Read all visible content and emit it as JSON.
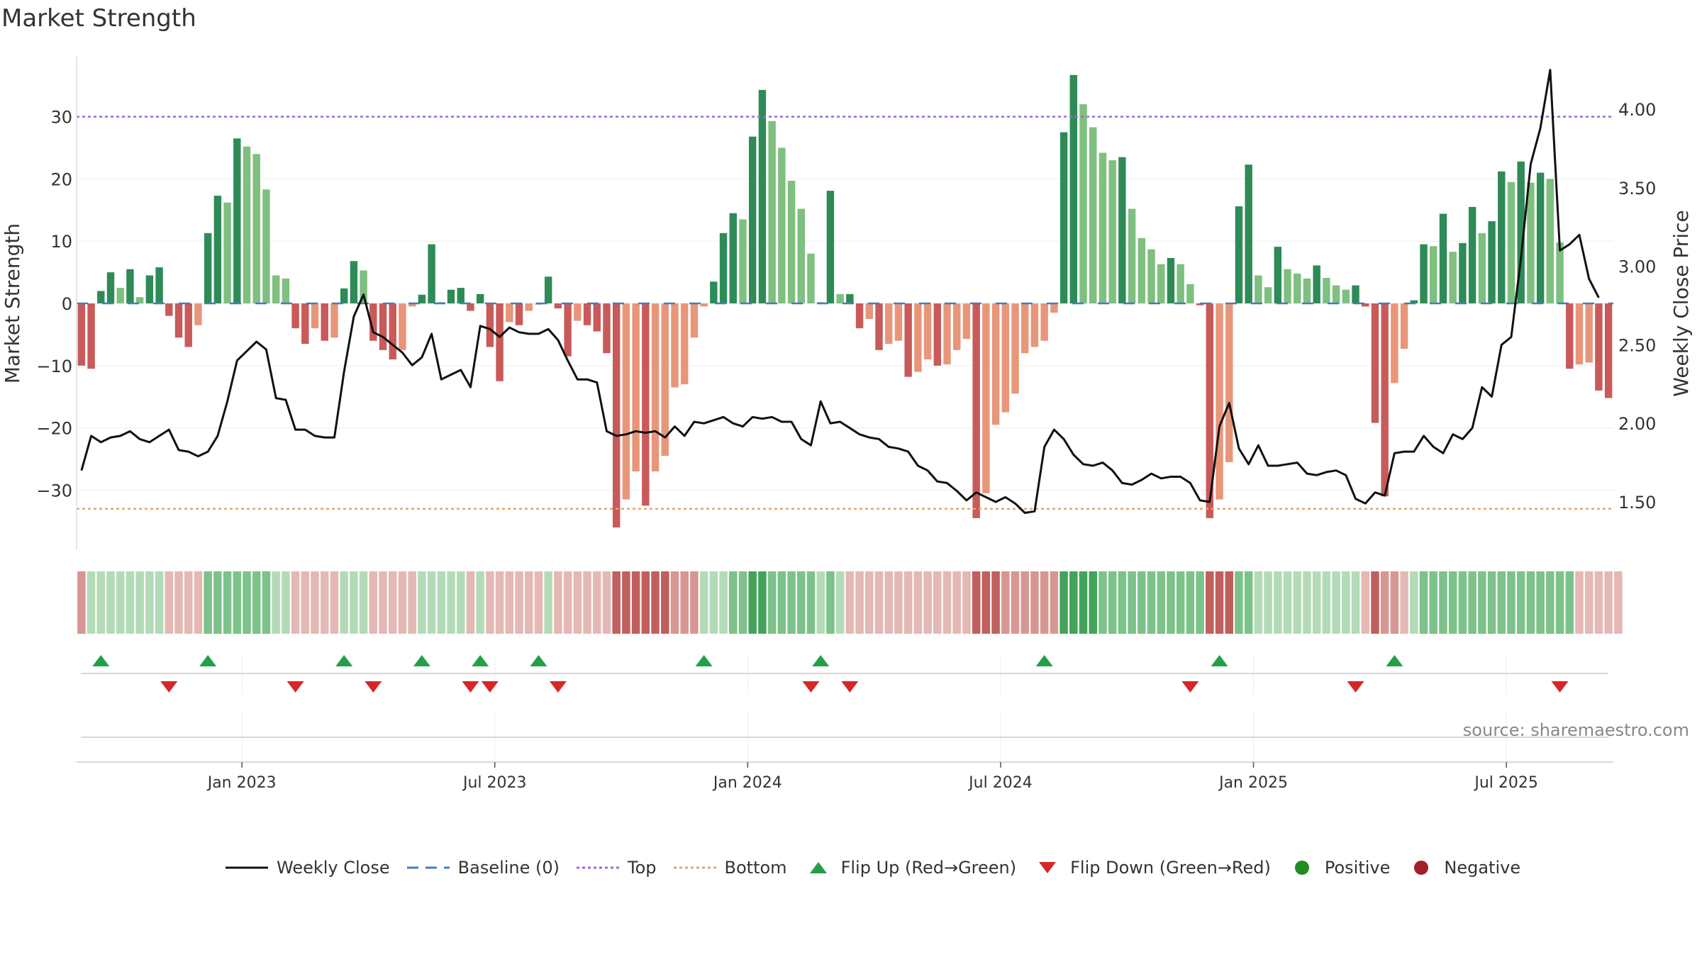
{
  "title": "Market Strength",
  "source": "source: sharemaestro.com",
  "colors": {
    "pos_dark": "#2e8b57",
    "pos_light": "#7fbf7f",
    "neg_dark": "#c85a5a",
    "neg_light": "#e8967a",
    "top_line": "#9c6ad9",
    "bottom_line": "#e8a46a",
    "baseline": "#3f7fbf",
    "close_line": "#111111",
    "flip_up": "#23a047",
    "flip_down": "#d62728",
    "positive_dot": "#228b22",
    "negative_dot": "#a0202a"
  },
  "chart_data": {
    "type": "bar",
    "x_ticks": [
      "Jan 2023",
      "Jul 2023",
      "Jan 2024",
      "Jul 2024",
      "Jan 2025",
      "Jul 2025"
    ],
    "x_tick_weeks": [
      17,
      43,
      69,
      95,
      121,
      147
    ],
    "ylabel": "Market Strength",
    "y2label": "Weekly Close Price",
    "yticks": [
      30,
      20,
      10,
      0,
      -10,
      -20,
      -30
    ],
    "ylim": [
      -39,
      40
    ],
    "y2ticks": [
      "4.00",
      "3.50",
      "3.00",
      "2.50",
      "2.00",
      "1.50"
    ],
    "y2lim": [
      1.3,
      4.42
    ],
    "top_level": 30,
    "bottom_level": -33,
    "strength": [
      -10,
      -10.5,
      2,
      5,
      2.5,
      5.5,
      1,
      4.5,
      5.8,
      -2,
      -5.5,
      -7,
      -3.5,
      11.3,
      17.3,
      16.2,
      26.5,
      25.2,
      24,
      18.3,
      4.5,
      4,
      -4,
      -6.5,
      -4,
      -6,
      -5.5,
      2.4,
      6.8,
      5.3,
      -6,
      -7.5,
      -9,
      -7.5,
      -0.5,
      1.4,
      9.5,
      0.2,
      2.2,
      2.5,
      -1.2,
      1.5,
      -7,
      -12.5,
      -3,
      -3.5,
      -1.2,
      -0.2,
      4.3,
      -0.8,
      -8.5,
      -2.8,
      -3.5,
      -4.5,
      -8,
      -36,
      -31.5,
      -27,
      -32.5,
      -27,
      -24.5,
      -13.5,
      -13,
      -5.5,
      -0.5,
      3.5,
      11.3,
      14.5,
      13.5,
      26.8,
      34.3,
      29.3,
      25,
      19.7,
      15.2,
      8,
      0.2,
      18.1,
      1.5,
      1.5,
      -4,
      -2.5,
      -7.5,
      -6.5,
      -6,
      -11.8,
      -11,
      -9,
      -10,
      -9.8,
      -7.5,
      -5.7,
      -34.5,
      -30.5,
      -19.5,
      -17.5,
      -14.5,
      -8,
      -7,
      -6,
      -1.5,
      27.5,
      36.7,
      32,
      28.3,
      24.2,
      23,
      23.5,
      15.2,
      10.5,
      8.7,
      6.3,
      7.3,
      6.3,
      3.1,
      -0.3,
      -34.5,
      -31.5,
      -25.5,
      15.6,
      22.3,
      4.5,
      2.6,
      9.1,
      5.5,
      4.8,
      4,
      6.1,
      4.1,
      2.9,
      2.2,
      2.9,
      -0.5,
      -19.2,
      -31,
      -12.8,
      -7.3,
      0.5,
      9.5,
      9.2,
      14.4,
      8.3,
      9.7,
      15.5,
      11.3,
      13.2,
      21.2,
      19.5,
      22.8,
      19.4,
      21,
      20,
      9.8,
      -10.5,
      -9.8,
      -9.5,
      -14,
      -15.2
    ],
    "close": [
      1.7,
      1.92,
      1.88,
      1.91,
      1.92,
      1.95,
      1.9,
      1.88,
      1.92,
      1.96,
      1.83,
      1.82,
      1.79,
      1.82,
      1.92,
      2.14,
      2.4,
      2.46,
      2.52,
      2.47,
      2.16,
      2.15,
      1.96,
      1.96,
      1.92,
      1.91,
      1.91,
      2.33,
      2.68,
      2.82,
      2.58,
      2.55,
      2.5,
      2.45,
      2.37,
      2.42,
      2.57,
      2.28,
      2.31,
      2.34,
      2.23,
      2.62,
      2.6,
      2.55,
      2.61,
      2.58,
      2.57,
      2.57,
      2.6,
      2.53,
      2.4,
      2.28,
      2.28,
      2.26,
      1.95,
      1.92,
      1.93,
      1.95,
      1.94,
      1.95,
      1.91,
      1.98,
      1.92,
      2.01,
      2.0,
      2.02,
      2.04,
      2.0,
      1.98,
      2.04,
      2.03,
      2.04,
      2.01,
      2.01,
      1.9,
      1.86,
      2.14,
      2.0,
      2.01,
      1.97,
      1.93,
      1.91,
      1.9,
      1.85,
      1.84,
      1.82,
      1.73,
      1.7,
      1.63,
      1.62,
      1.57,
      1.51,
      1.56,
      1.53,
      1.5,
      1.53,
      1.49,
      1.43,
      1.44,
      1.85,
      1.96,
      1.9,
      1.8,
      1.74,
      1.73,
      1.75,
      1.7,
      1.62,
      1.61,
      1.64,
      1.68,
      1.65,
      1.66,
      1.66,
      1.62,
      1.51,
      1.5,
      1.98,
      2.13,
      1.84,
      1.74,
      1.86,
      1.73,
      1.73,
      1.74,
      1.75,
      1.68,
      1.67,
      1.69,
      1.7,
      1.67,
      1.52,
      1.49,
      1.56,
      1.54,
      1.81,
      1.82,
      1.82,
      1.92,
      1.85,
      1.81,
      1.93,
      1.9,
      1.97,
      2.23,
      2.17,
      2.5,
      2.55,
      3.05,
      3.65,
      3.88,
      4.25,
      3.1,
      3.14,
      3.2,
      2.92,
      2.8
    ],
    "strength_band": [
      -2,
      1,
      1,
      1,
      1,
      1,
      1,
      1,
      1,
      -1,
      -1,
      -1,
      -1,
      2,
      2,
      2,
      2,
      2,
      2,
      2,
      1,
      1,
      -1,
      -1,
      -1,
      -1,
      -1,
      1,
      1,
      1,
      -1,
      -1,
      -1,
      -1,
      -1,
      1,
      1,
      1,
      1,
      1,
      -1,
      1,
      -1,
      -1,
      -1,
      -1,
      -1,
      -1,
      1,
      -1,
      -1,
      -1,
      -1,
      -1,
      -1,
      -3,
      -3,
      -3,
      -3,
      -3,
      -3,
      -2,
      -2,
      -2,
      1,
      1,
      1,
      2,
      2,
      3,
      3,
      2,
      2,
      2,
      2,
      2,
      1,
      2,
      1,
      -1,
      -1,
      -1,
      -1,
      -1,
      -1,
      -1,
      -1,
      -1,
      -1,
      -1,
      -1,
      -1,
      -3,
      -3,
      -3,
      -2,
      -2,
      -2,
      -2,
      -2,
      -2,
      3,
      3,
      3,
      3,
      2,
      2,
      2,
      2,
      2,
      2,
      2,
      2,
      2,
      2,
      2,
      -3,
      -3,
      -3,
      2,
      2,
      1,
      1,
      1,
      1,
      1,
      1,
      1,
      1,
      1,
      1,
      1,
      -1,
      -3,
      -2,
      -2,
      -1,
      1,
      2,
      2,
      2,
      2,
      2,
      2,
      2,
      2,
      2,
      2,
      2,
      2,
      2,
      2,
      2,
      2,
      -1,
      -1,
      -1,
      -1,
      -1
    ],
    "flip_up_weeks": [
      2,
      13,
      27,
      35,
      41,
      47,
      64,
      76,
      99,
      117,
      135
    ],
    "flip_down_weeks": [
      9,
      22,
      30,
      40,
      42,
      49,
      75,
      79,
      114,
      131,
      152
    ],
    "legend": [
      "Weekly Close",
      "Baseline (0)",
      "Top",
      "Bottom",
      "Flip Up (Red→Green)",
      "Flip Down (Green→Red)",
      "Positive",
      "Negative"
    ]
  }
}
